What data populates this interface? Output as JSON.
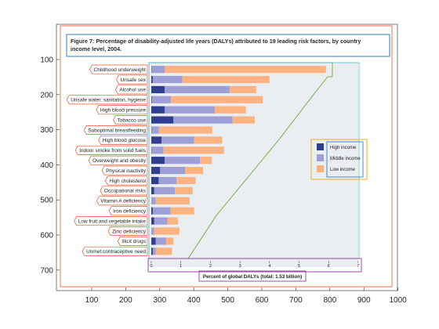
{
  "figure": {
    "title_line1": "Figure 7: Percentage of disability-adjusted life years (DALYs) attributed to 19 leading risk factors, by country",
    "title_line2": "income level, 2004.",
    "xlabel": "Percent of global DALYs (total: 1.53 billion)"
  },
  "colors": {
    "high": "#2e3f8f",
    "middle": "#9d9fd6",
    "low": "#fdb381",
    "panel_bg": "#ebeef1",
    "overlay_orange": "#e8542b",
    "overlay_green": "#5aa02c",
    "overlay_cyan": "#4fc3dc",
    "overlay_blue": "#1f6fb5",
    "overlay_purple": "#8e3e9a",
    "overlay_gold": "#f0a30a"
  },
  "legend": {
    "items": [
      {
        "label": "High income",
        "color": "#2e3f8f"
      },
      {
        "label": "Middle income",
        "color": "#9d9fd6"
      },
      {
        "label": "Low income",
        "color": "#fdb381"
      }
    ]
  },
  "image_axes": {
    "x_ticks": [
      "100",
      "200",
      "300",
      "400",
      "500",
      "600",
      "700",
      "800",
      "900",
      "1000"
    ],
    "y_ticks": [
      "100",
      "200",
      "300",
      "400",
      "500",
      "600",
      "700"
    ]
  },
  "chart_data": {
    "type": "bar",
    "orientation": "horizontal",
    "stacked": true,
    "xlabel": "Percent of global DALYs (total: 1.53 billion)",
    "xlim": [
      0,
      7
    ],
    "x_ticks": [
      "0",
      "1",
      "2",
      "3",
      "4",
      "5",
      "6",
      "7"
    ],
    "legend_position": "right",
    "categories": [
      "Childhood underweight",
      "Unsafe sex",
      "Alcohol use",
      "Unsafe water, sanitation, hygiene",
      "High blood pressure",
      "Tobacco use",
      "Suboptimal breastfeeding",
      "High blood glucose",
      "Indoor smoke from solid fuels",
      "Overweight and obesity",
      "Physical inactivity",
      "High cholesterol",
      "Occupational risks",
      "Vitamin A deficiency",
      "Iron deficiency",
      "Low fruit and vegetable intake",
      "Zinc deficiency",
      "Illicit drugs",
      "Unmet contraceptive need"
    ],
    "series": [
      {
        "name": "High income",
        "values": [
          0.01,
          0.05,
          0.45,
          0.02,
          0.45,
          0.75,
          0.01,
          0.35,
          0.01,
          0.45,
          0.3,
          0.25,
          0.1,
          0.0,
          0.05,
          0.1,
          0.0,
          0.15,
          0.05
        ]
      },
      {
        "name": "Middle income",
        "values": [
          0.45,
          1.0,
          2.2,
          0.65,
          1.7,
          2.0,
          0.25,
          1.1,
          0.4,
          1.2,
          0.85,
          0.6,
          0.7,
          0.15,
          0.6,
          0.45,
          0.1,
          0.35,
          0.1
        ]
      },
      {
        "name": "Low income",
        "values": [
          5.45,
          2.95,
          0.9,
          3.1,
          1.05,
          0.75,
          1.8,
          0.95,
          2.05,
          0.4,
          0.6,
          0.65,
          0.6,
          1.15,
          0.8,
          0.35,
          0.85,
          0.25,
          0.55
        ]
      }
    ]
  }
}
